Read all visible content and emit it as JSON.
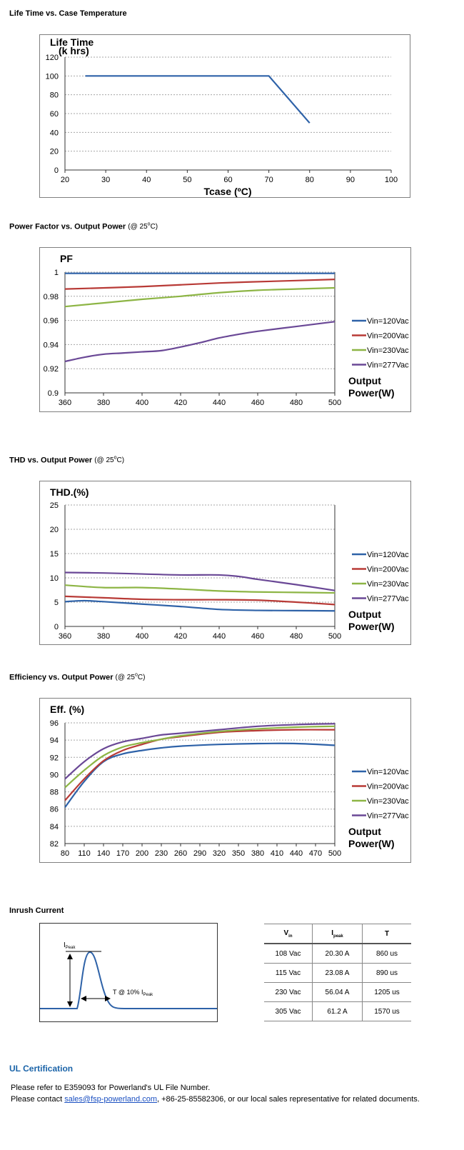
{
  "sections": {
    "life_title": "Life Time vs. Case Temperature",
    "pf_title": "Power Factor vs. Output Power",
    "pf_note_prefix": "(@ 25",
    "pf_note_deg": "o",
    "pf_note_suffix": "C)",
    "thd_title": "THD vs. Output Power",
    "thd_note_prefix": "(@ 25",
    "thd_note_deg": "o",
    "thd_note_suffix": "C)",
    "eff_title": "Efficiency vs. Output Power",
    "eff_note_prefix": "(@ 25",
    "eff_note_deg": "o",
    "eff_note_suffix": "C)",
    "inrush_title": "Inrush Current"
  },
  "chart_data": [
    {
      "type": "line",
      "title": "Life Time vs. Case Temperature",
      "ylabel_line1": "Life Time",
      "ylabel_line2": "(k hrs)",
      "xlabel": "Tcase (ºC)",
      "xlim": [
        20,
        100
      ],
      "ylim": [
        0,
        120
      ],
      "xticks": [
        20,
        30,
        40,
        50,
        60,
        70,
        80,
        90,
        100
      ],
      "yticks": [
        0,
        20,
        40,
        60,
        80,
        100,
        120
      ],
      "grid": true,
      "series": [
        {
          "color": "#2e62a8",
          "points": [
            [
              25,
              100
            ],
            [
              70,
              100
            ],
            [
              80,
              50
            ]
          ]
        }
      ]
    },
    {
      "type": "line",
      "title": "Power Factor vs. Output Power",
      "ylabel": "PF",
      "xlabel_line1": "Output",
      "xlabel_line2": "Power(W)",
      "xlim": [
        360,
        500
      ],
      "ylim": [
        0.9,
        1
      ],
      "xticks": [
        360,
        380,
        400,
        420,
        440,
        460,
        480,
        500
      ],
      "yticks": [
        "0.9",
        "0.92",
        "0.94",
        "0.96",
        "0.98",
        "1"
      ],
      "grid": true,
      "legend_position": "right",
      "series": [
        {
          "name": "Vin=120Vac",
          "color": "#2e62a8",
          "points": [
            [
              360,
              0.999
            ],
            [
              400,
              0.999
            ],
            [
              440,
              0.999
            ],
            [
              500,
              0.999
            ]
          ]
        },
        {
          "name": "Vin=200Vac",
          "color": "#b83a36",
          "points": [
            [
              360,
              0.986
            ],
            [
              400,
              0.988
            ],
            [
              440,
              0.991
            ],
            [
              480,
              0.993
            ],
            [
              500,
              0.994
            ]
          ]
        },
        {
          "name": "Vin=230Vac",
          "color": "#8db545",
          "points": [
            [
              360,
              0.9715
            ],
            [
              380,
              0.9745
            ],
            [
              400,
              0.9775
            ],
            [
              420,
              0.98
            ],
            [
              440,
              0.983
            ],
            [
              460,
              0.985
            ],
            [
              480,
              0.986
            ],
            [
              500,
              0.987
            ]
          ]
        },
        {
          "name": "Vin=277Vac",
          "color": "#6a4896",
          "points": [
            [
              360,
              0.926
            ],
            [
              370,
              0.9295
            ],
            [
              380,
              0.932
            ],
            [
              390,
              0.933
            ],
            [
              400,
              0.934
            ],
            [
              410,
              0.935
            ],
            [
              420,
              0.938
            ],
            [
              430,
              0.9415
            ],
            [
              440,
              0.9455
            ],
            [
              450,
              0.9485
            ],
            [
              460,
              0.951
            ],
            [
              480,
              0.955
            ],
            [
              500,
              0.959
            ]
          ]
        }
      ]
    },
    {
      "type": "line",
      "title": "THD vs. Output Power",
      "ylabel": "THD.(%)",
      "xlabel_line1": "Output",
      "xlabel_line2": "Power(W)",
      "xlim": [
        360,
        500
      ],
      "ylim": [
        0,
        25
      ],
      "xticks": [
        360,
        380,
        400,
        420,
        440,
        460,
        480,
        500
      ],
      "yticks": [
        0,
        5,
        10,
        15,
        20,
        25
      ],
      "grid": true,
      "legend_position": "right",
      "series": [
        {
          "name": "Vin=120Vac",
          "color": "#2e62a8",
          "points": [
            [
              360,
              5.1
            ],
            [
              370,
              5.3
            ],
            [
              380,
              5.1
            ],
            [
              400,
              4.6
            ],
            [
              420,
              4.1
            ],
            [
              440,
              3.5
            ],
            [
              460,
              3.3
            ],
            [
              480,
              3.25
            ],
            [
              500,
              3.2
            ]
          ]
        },
        {
          "name": "Vin=200Vac",
          "color": "#b83a36",
          "points": [
            [
              360,
              6.2
            ],
            [
              380,
              5.9
            ],
            [
              400,
              5.6
            ],
            [
              420,
              5.5
            ],
            [
              440,
              5.5
            ],
            [
              460,
              5.4
            ],
            [
              480,
              5.0
            ],
            [
              500,
              4.5
            ]
          ]
        },
        {
          "name": "Vin=230Vac",
          "color": "#8db545",
          "points": [
            [
              360,
              8.5
            ],
            [
              380,
              8.0
            ],
            [
              400,
              8.0
            ],
            [
              420,
              7.7
            ],
            [
              440,
              7.3
            ],
            [
              460,
              7.1
            ],
            [
              480,
              7.0
            ],
            [
              500,
              6.9
            ]
          ]
        },
        {
          "name": "Vin=277Vac",
          "color": "#6a4896",
          "points": [
            [
              360,
              11.1
            ],
            [
              380,
              11.0
            ],
            [
              400,
              10.8
            ],
            [
              420,
              10.6
            ],
            [
              440,
              10.6
            ],
            [
              450,
              10.3
            ],
            [
              460,
              9.7
            ],
            [
              480,
              8.6
            ],
            [
              500,
              7.4
            ]
          ]
        }
      ]
    },
    {
      "type": "line",
      "title": "Efficiency vs. Output Power",
      "ylabel": "Eff. (%)",
      "xlabel_line1": "Output",
      "xlabel_line2": "Power(W)",
      "xlim": [
        80,
        500
      ],
      "ylim": [
        82,
        96
      ],
      "xticks": [
        80,
        110,
        140,
        170,
        200,
        230,
        260,
        290,
        320,
        350,
        380,
        410,
        440,
        470,
        500
      ],
      "yticks": [
        82,
        84,
        86,
        88,
        90,
        92,
        94,
        96
      ],
      "grid": true,
      "legend_position": "right",
      "series": [
        {
          "name": "Vin=120Vac",
          "color": "#2e62a8",
          "points": [
            [
              80,
              86.2
            ],
            [
              110,
              89.2
            ],
            [
              140,
              91.5
            ],
            [
              170,
              92.4
            ],
            [
              200,
              92.8
            ],
            [
              230,
              93.1
            ],
            [
              260,
              93.3
            ],
            [
              320,
              93.5
            ],
            [
              380,
              93.6
            ],
            [
              440,
              93.6
            ],
            [
              500,
              93.4
            ]
          ]
        },
        {
          "name": "Vin=200Vac",
          "color": "#b83a36",
          "points": [
            [
              80,
              87.0
            ],
            [
              110,
              89.5
            ],
            [
              140,
              91.6
            ],
            [
              170,
              92.8
            ],
            [
              200,
              93.5
            ],
            [
              230,
              94.1
            ],
            [
              260,
              94.4
            ],
            [
              320,
              94.9
            ],
            [
              380,
              95.1
            ],
            [
              440,
              95.2
            ],
            [
              500,
              95.2
            ]
          ]
        },
        {
          "name": "Vin=230Vac",
          "color": "#8db545",
          "points": [
            [
              80,
              88.5
            ],
            [
              110,
              90.5
            ],
            [
              140,
              92.2
            ],
            [
              170,
              93.2
            ],
            [
              200,
              93.7
            ],
            [
              230,
              94.1
            ],
            [
              260,
              94.5
            ],
            [
              320,
              95.0
            ],
            [
              380,
              95.3
            ],
            [
              440,
              95.5
            ],
            [
              500,
              95.6
            ]
          ]
        },
        {
          "name": "Vin=277Vac",
          "color": "#6a4896",
          "points": [
            [
              80,
              89.5
            ],
            [
              110,
              91.5
            ],
            [
              140,
              93.0
            ],
            [
              170,
              93.8
            ],
            [
              200,
              94.2
            ],
            [
              230,
              94.6
            ],
            [
              260,
              94.8
            ],
            [
              320,
              95.2
            ],
            [
              380,
              95.6
            ],
            [
              440,
              95.8
            ],
            [
              500,
              95.9
            ]
          ]
        }
      ]
    }
  ],
  "inrush": {
    "diagram": {
      "ipeak_main": "I",
      "ipeak_sub": "Peak",
      "t_label_prefix": "T @ 10% I",
      "t_label_sub": "Peak"
    },
    "headers": {
      "vin_main": "V",
      "vin_sub": "in",
      "ipeak_main": "I",
      "ipeak_sub": "peak",
      "t": "T"
    },
    "rows": [
      [
        "108 Vac",
        "20.30 A",
        "860 us"
      ],
      [
        "115 Vac",
        "23.08 A",
        "890 us"
      ],
      [
        "230 Vac",
        "56.04 A",
        "1205 us"
      ],
      [
        "305 Vac",
        "61.2 A",
        "1570 us"
      ]
    ]
  },
  "ul": {
    "title": "UL Certification",
    "line1": "Please refer to E359093 for Powerland's UL File Number.",
    "line2_prefix": "Please contact ",
    "email": "sales@fsp-powerland.com",
    "line2_suffix": ", +86-25-85582306, or our local sales representative for related documents."
  }
}
